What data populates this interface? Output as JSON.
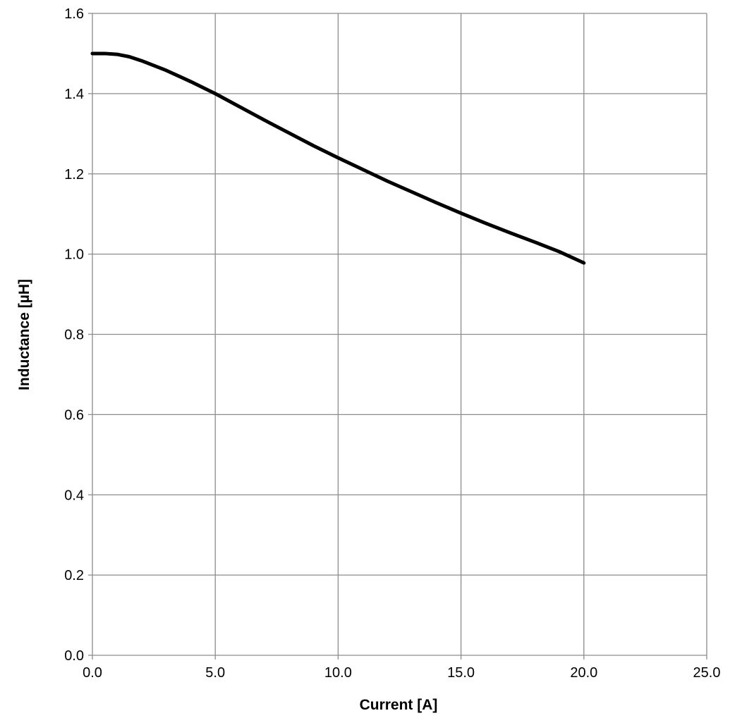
{
  "chart_data": {
    "type": "line",
    "title": "",
    "xlabel": "Current [A]",
    "ylabel": "Inductance [µH]",
    "xlim": [
      0,
      25
    ],
    "ylim": [
      0,
      1.6
    ],
    "x_ticks": [
      "0.0",
      "5.0",
      "10.0",
      "15.0",
      "20.0",
      "25.0"
    ],
    "y_ticks": [
      "0.0",
      "0.2",
      "0.4",
      "0.6",
      "0.8",
      "1.0",
      "1.2",
      "1.4",
      "1.6"
    ],
    "grid": true,
    "legend": "none",
    "series": [
      {
        "color": "#000000",
        "x": [
          0.0,
          0.5,
          1.0,
          1.5,
          2.0,
          3.0,
          4.0,
          5.0,
          6.0,
          7.0,
          8.0,
          9.0,
          10.0,
          11.0,
          12.0,
          13.0,
          14.0,
          15.0,
          16.0,
          17.0,
          18.0,
          19.0,
          20.0
        ],
        "y": [
          1.5,
          1.5,
          1.498,
          1.492,
          1.482,
          1.458,
          1.43,
          1.4,
          1.367,
          1.334,
          1.302,
          1.27,
          1.24,
          1.211,
          1.182,
          1.155,
          1.128,
          1.102,
          1.077,
          1.053,
          1.03,
          1.006,
          0.978
        ]
      }
    ]
  }
}
